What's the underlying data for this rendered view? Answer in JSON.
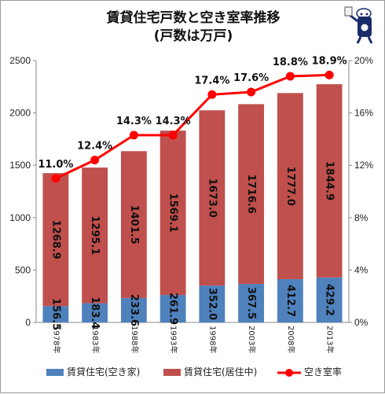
{
  "chart_data": {
    "type": "bar",
    "title": "賃貸住宅戸数と空き室率推移",
    "subtitle": "(戸数は万戸)",
    "categories": [
      "1978年",
      "1983年",
      "1988年",
      "1993年",
      "1998年",
      "2003年",
      "2008年",
      "2013年"
    ],
    "stacked": true,
    "series": [
      {
        "name": "賃貸住宅(空き家)",
        "values": [
          156.5,
          183.4,
          233.6,
          261.9,
          352.0,
          367.5,
          412.7,
          429.2
        ],
        "color": "#4f81bd",
        "axis": "left"
      },
      {
        "name": "賃貸住宅(居住中)",
        "values": [
          1268.9,
          1295.1,
          1401.5,
          1569.1,
          1673.0,
          1716.6,
          1777.0,
          1844.9
        ],
        "color": "#c0504d",
        "axis": "left"
      },
      {
        "name": "空き室率",
        "type": "line",
        "values": [
          11.0,
          12.4,
          14.3,
          14.3,
          17.4,
          17.6,
          18.8,
          18.9
        ],
        "color": "#ff0000",
        "axis": "right"
      }
    ],
    "ylim": [
      0,
      2500
    ],
    "yticks": [
      "0",
      "500",
      "1000",
      "1500",
      "2000",
      "2500"
    ],
    "y2lim": [
      0,
      20
    ],
    "y2ticks": [
      "0%",
      "4%",
      "8%",
      "12%",
      "16%",
      "20%"
    ],
    "grid": false,
    "legend_position": "bottom"
  }
}
